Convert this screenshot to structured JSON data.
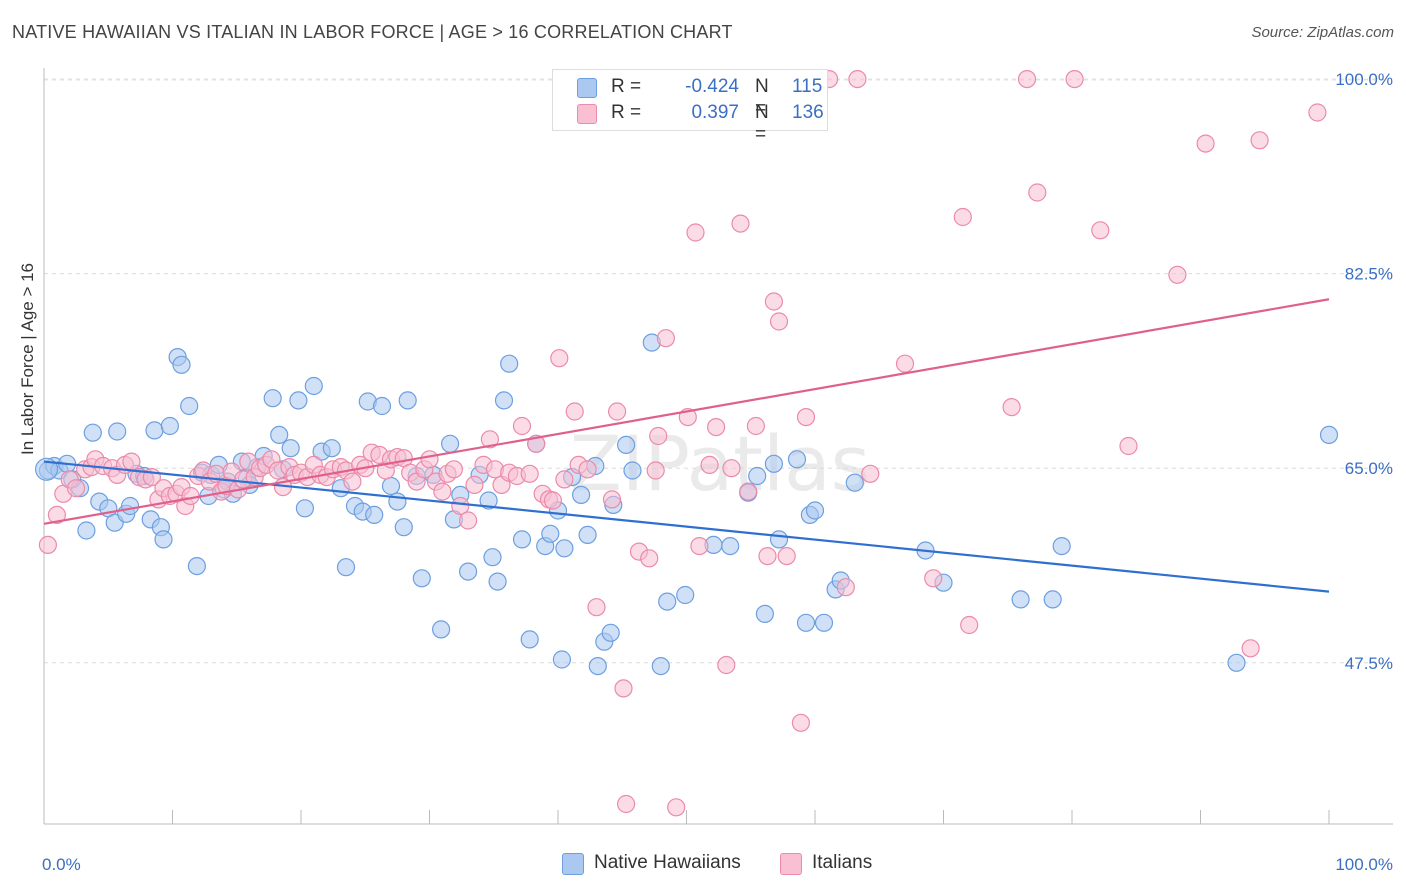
{
  "title": "NATIVE HAWAIIAN VS ITALIAN IN LABOR FORCE | AGE > 16 CORRELATION CHART",
  "source": "Source: ZipAtlas.com",
  "watermark": "ZIPatlas",
  "legend": {
    "rows": [
      {
        "r_label": "R =",
        "r_value": "-0.424",
        "n_label": "N =",
        "n_value": "115",
        "color": "#aac8f0",
        "border": "#6d9fe0"
      },
      {
        "r_label": "R =",
        "r_value": "0.397",
        "n_label": "N =",
        "n_value": "136",
        "color": "#f8c0d2",
        "border": "#eb8aaa"
      }
    ]
  },
  "bottom_legend": [
    {
      "label": "Native Hawaiians",
      "color": "#aac8f0",
      "border": "#6d9fe0"
    },
    {
      "label": "Italians",
      "color": "#f8c0d2",
      "border": "#eb8aaa"
    }
  ],
  "chart_data": {
    "type": "scatter",
    "title": "NATIVE HAWAIIAN VS ITALIAN IN LABOR FORCE | AGE > 16 CORRELATION CHART",
    "xlabel": "",
    "ylabel": "In Labor Force | Age > 16",
    "xlim": [
      0,
      100
    ],
    "ylim": [
      33,
      101
    ],
    "x_tick_labels": [
      "0.0%",
      "100.0%"
    ],
    "y_ticks": [
      47.5,
      65.0,
      82.5,
      100.0
    ],
    "y_tick_labels": [
      "47.5%",
      "65.0%",
      "82.5%",
      "100.0%"
    ],
    "grid": true,
    "legend_position": "top-center",
    "series": [
      {
        "name": "Native Hawaiians",
        "color": "#6d9fe0",
        "fill": "#aac8f0",
        "trend": {
          "x": [
            0,
            100
          ],
          "y": [
            65.6,
            53.9
          ]
        },
        "points": [
          [
            0.3,
            64.8
          ],
          [
            0.8,
            65.2
          ],
          [
            1.2,
            64.8
          ],
          [
            1.8,
            65.4
          ],
          [
            2.2,
            64.0
          ],
          [
            2.8,
            63.2
          ],
          [
            3.3,
            59.4
          ],
          [
            3.8,
            68.2
          ],
          [
            4.3,
            62.0
          ],
          [
            5.0,
            61.4
          ],
          [
            5.5,
            60.1
          ],
          [
            5.7,
            68.3
          ],
          [
            6.4,
            60.9
          ],
          [
            6.7,
            61.6
          ],
          [
            7.2,
            64.5
          ],
          [
            7.8,
            64.3
          ],
          [
            8.3,
            60.4
          ],
          [
            8.6,
            68.4
          ],
          [
            9.1,
            59.7
          ],
          [
            9.3,
            58.6
          ],
          [
            9.8,
            68.8
          ],
          [
            10.4,
            75.0
          ],
          [
            10.7,
            74.3
          ],
          [
            11.3,
            70.6
          ],
          [
            11.9,
            56.2
          ],
          [
            12.3,
            64.6
          ],
          [
            12.8,
            62.5
          ],
          [
            13.0,
            64.4
          ],
          [
            13.6,
            65.3
          ],
          [
            14.0,
            63.1
          ],
          [
            14.3,
            63.8
          ],
          [
            14.7,
            62.7
          ],
          [
            15.4,
            65.6
          ],
          [
            15.8,
            64.1
          ],
          [
            16.0,
            63.5
          ],
          [
            16.6,
            65.1
          ],
          [
            17.1,
            66.1
          ],
          [
            17.8,
            71.3
          ],
          [
            18.3,
            68.0
          ],
          [
            18.6,
            64.9
          ],
          [
            19.2,
            66.8
          ],
          [
            19.8,
            71.1
          ],
          [
            20.3,
            61.4
          ],
          [
            21.0,
            72.4
          ],
          [
            21.6,
            66.5
          ],
          [
            22.4,
            66.8
          ],
          [
            23.1,
            63.2
          ],
          [
            23.5,
            56.1
          ],
          [
            24.2,
            61.6
          ],
          [
            24.8,
            61.1
          ],
          [
            25.2,
            71.0
          ],
          [
            25.7,
            60.8
          ],
          [
            26.3,
            70.6
          ],
          [
            27.0,
            63.4
          ],
          [
            27.5,
            62.0
          ],
          [
            28.0,
            59.7
          ],
          [
            28.3,
            71.1
          ],
          [
            29.0,
            64.3
          ],
          [
            29.4,
            55.1
          ],
          [
            30.3,
            64.4
          ],
          [
            30.9,
            50.5
          ],
          [
            31.6,
            67.2
          ],
          [
            31.9,
            60.4
          ],
          [
            32.4,
            62.6
          ],
          [
            33.0,
            55.7
          ],
          [
            33.9,
            64.4
          ],
          [
            34.6,
            62.1
          ],
          [
            34.9,
            57.0
          ],
          [
            35.3,
            54.8
          ],
          [
            35.8,
            71.1
          ],
          [
            36.2,
            74.4
          ],
          [
            37.2,
            58.6
          ],
          [
            37.8,
            49.6
          ],
          [
            38.3,
            67.2
          ],
          [
            39.0,
            58.0
          ],
          [
            39.4,
            59.1
          ],
          [
            40.0,
            61.2
          ],
          [
            40.3,
            47.8
          ],
          [
            40.5,
            57.8
          ],
          [
            41.1,
            64.2
          ],
          [
            41.8,
            62.6
          ],
          [
            42.3,
            59.0
          ],
          [
            42.9,
            65.2
          ],
          [
            43.1,
            47.2
          ],
          [
            43.6,
            49.4
          ],
          [
            44.1,
            50.2
          ],
          [
            44.3,
            61.7
          ],
          [
            45.3,
            67.1
          ],
          [
            45.8,
            64.8
          ],
          [
            47.3,
            76.3
          ],
          [
            48.0,
            47.2
          ],
          [
            48.5,
            53.0
          ],
          [
            49.9,
            53.6
          ],
          [
            52.1,
            58.1
          ],
          [
            53.4,
            58.0
          ],
          [
            54.8,
            62.8
          ],
          [
            55.5,
            64.3
          ],
          [
            56.1,
            51.9
          ],
          [
            56.8,
            65.4
          ],
          [
            57.2,
            58.6
          ],
          [
            58.6,
            65.8
          ],
          [
            59.3,
            51.1
          ],
          [
            59.6,
            60.8
          ],
          [
            60.0,
            61.2
          ],
          [
            60.7,
            51.1
          ],
          [
            61.6,
            54.1
          ],
          [
            62.0,
            54.9
          ],
          [
            63.1,
            63.7
          ],
          [
            68.6,
            57.6
          ],
          [
            70.0,
            54.7
          ],
          [
            76.0,
            53.2
          ],
          [
            78.5,
            53.2
          ],
          [
            79.2,
            58.0
          ],
          [
            92.8,
            47.5
          ],
          [
            100.0,
            68.0
          ]
        ]
      },
      {
        "name": "Italians",
        "color": "#eb8aaa",
        "fill": "#f8c0d2",
        "trend": {
          "x": [
            0,
            100
          ],
          "y": [
            60.0,
            80.2
          ]
        },
        "points": [
          [
            0.3,
            58.1
          ],
          [
            1.0,
            60.8
          ],
          [
            1.5,
            62.7
          ],
          [
            2.0,
            64.0
          ],
          [
            2.5,
            63.2
          ],
          [
            3.2,
            64.9
          ],
          [
            3.7,
            65.1
          ],
          [
            4.0,
            65.8
          ],
          [
            4.6,
            65.2
          ],
          [
            5.3,
            65.0
          ],
          [
            5.7,
            64.4
          ],
          [
            6.3,
            65.3
          ],
          [
            6.8,
            65.6
          ],
          [
            7.4,
            64.2
          ],
          [
            7.9,
            64.0
          ],
          [
            8.4,
            64.2
          ],
          [
            8.9,
            62.2
          ],
          [
            9.3,
            63.2
          ],
          [
            9.8,
            62.5
          ],
          [
            10.3,
            62.7
          ],
          [
            10.7,
            63.3
          ],
          [
            11.0,
            61.6
          ],
          [
            11.4,
            62.5
          ],
          [
            12.0,
            64.3
          ],
          [
            12.4,
            64.8
          ],
          [
            12.9,
            63.8
          ],
          [
            13.4,
            64.5
          ],
          [
            13.8,
            62.9
          ],
          [
            14.2,
            63.4
          ],
          [
            14.6,
            64.7
          ],
          [
            15.1,
            63.1
          ],
          [
            15.5,
            64.0
          ],
          [
            15.9,
            65.6
          ],
          [
            16.4,
            64.2
          ],
          [
            16.8,
            65.0
          ],
          [
            17.3,
            65.3
          ],
          [
            17.7,
            65.8
          ],
          [
            18.2,
            64.8
          ],
          [
            18.6,
            63.3
          ],
          [
            19.1,
            65.1
          ],
          [
            19.5,
            64.4
          ],
          [
            20.0,
            64.6
          ],
          [
            20.5,
            64.2
          ],
          [
            21.0,
            65.3
          ],
          [
            21.5,
            64.4
          ],
          [
            22.0,
            64.2
          ],
          [
            22.5,
            64.9
          ],
          [
            23.1,
            65.1
          ],
          [
            23.5,
            64.8
          ],
          [
            24.0,
            63.8
          ],
          [
            24.6,
            65.3
          ],
          [
            25.0,
            65.0
          ],
          [
            25.5,
            66.4
          ],
          [
            26.1,
            66.2
          ],
          [
            26.6,
            64.8
          ],
          [
            27.0,
            65.8
          ],
          [
            27.5,
            66.0
          ],
          [
            28.0,
            65.9
          ],
          [
            28.5,
            64.6
          ],
          [
            29.0,
            63.8
          ],
          [
            29.6,
            64.9
          ],
          [
            30.0,
            65.8
          ],
          [
            30.5,
            63.8
          ],
          [
            31.0,
            62.9
          ],
          [
            31.4,
            64.5
          ],
          [
            31.9,
            64.9
          ],
          [
            32.4,
            61.6
          ],
          [
            33.0,
            60.3
          ],
          [
            33.5,
            63.5
          ],
          [
            34.2,
            65.3
          ],
          [
            34.7,
            67.6
          ],
          [
            35.1,
            64.9
          ],
          [
            35.6,
            63.5
          ],
          [
            36.2,
            64.6
          ],
          [
            36.8,
            64.3
          ],
          [
            37.2,
            68.8
          ],
          [
            37.8,
            64.5
          ],
          [
            38.3,
            67.2
          ],
          [
            38.8,
            62.7
          ],
          [
            39.3,
            62.2
          ],
          [
            39.6,
            62.1
          ],
          [
            40.1,
            74.9
          ],
          [
            40.5,
            64.0
          ],
          [
            41.3,
            70.1
          ],
          [
            41.6,
            65.3
          ],
          [
            42.3,
            64.9
          ],
          [
            43.0,
            52.5
          ],
          [
            44.2,
            62.2
          ],
          [
            44.6,
            70.1
          ],
          [
            45.1,
            45.2
          ],
          [
            45.3,
            34.8
          ],
          [
            46.3,
            57.5
          ],
          [
            47.1,
            56.9
          ],
          [
            47.6,
            64.8
          ],
          [
            47.8,
            67.9
          ],
          [
            48.4,
            76.7
          ],
          [
            49.2,
            34.5
          ],
          [
            50.1,
            69.6
          ],
          [
            50.7,
            86.2
          ],
          [
            51.0,
            58.0
          ],
          [
            51.8,
            65.3
          ],
          [
            52.3,
            68.7
          ],
          [
            53.1,
            47.3
          ],
          [
            53.5,
            65.0
          ],
          [
            54.2,
            87.0
          ],
          [
            54.8,
            62.9
          ],
          [
            55.4,
            68.8
          ],
          [
            56.3,
            57.1
          ],
          [
            56.8,
            80.0
          ],
          [
            57.2,
            78.2
          ],
          [
            57.8,
            57.1
          ],
          [
            58.9,
            42.1
          ],
          [
            59.3,
            69.6
          ],
          [
            61.1,
            100.0
          ],
          [
            62.4,
            54.3
          ],
          [
            63.3,
            100.0
          ],
          [
            64.3,
            64.5
          ],
          [
            67.0,
            74.4
          ],
          [
            69.2,
            55.1
          ],
          [
            71.5,
            87.6
          ],
          [
            72.0,
            50.9
          ],
          [
            75.3,
            70.5
          ],
          [
            76.5,
            100.0
          ],
          [
            77.3,
            89.8
          ],
          [
            80.2,
            100.0
          ],
          [
            82.2,
            86.4
          ],
          [
            84.4,
            67.0
          ],
          [
            88.2,
            82.4
          ],
          [
            90.4,
            94.2
          ],
          [
            93.9,
            48.8
          ],
          [
            94.6,
            94.5
          ],
          [
            99.1,
            97.0
          ],
          [
            49.2,
            100.0
          ],
          [
            54.0,
            100.0
          ],
          [
            55.8,
            100.0
          ],
          [
            58.1,
            100.0
          ]
        ]
      }
    ]
  }
}
